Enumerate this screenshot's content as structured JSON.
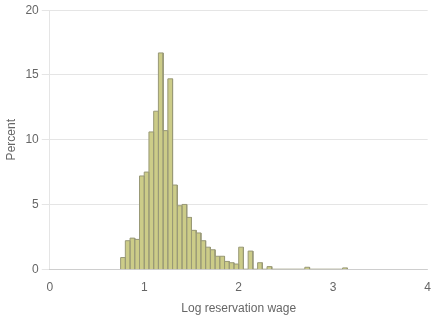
{
  "chart_data": {
    "type": "bar",
    "x": [
      0.75,
      0.8,
      0.85,
      0.9,
      0.95,
      1.0,
      1.05,
      1.1,
      1.15,
      1.2,
      1.25,
      1.3,
      1.35,
      1.4,
      1.45,
      1.5,
      1.55,
      1.6,
      1.65,
      1.7,
      1.75,
      1.8,
      1.85,
      1.9,
      1.95,
      2.0,
      2.1,
      2.2,
      2.3,
      2.7,
      3.1
    ],
    "values": [
      0.9,
      2.2,
      2.4,
      2.3,
      7.2,
      7.5,
      10.6,
      12.2,
      16.7,
      10.7,
      14.7,
      6.5,
      4.9,
      5.0,
      4.0,
      3.0,
      2.8,
      2.2,
      1.7,
      1.5,
      1.0,
      1.0,
      0.6,
      0.5,
      0.4,
      1.7,
      1.4,
      0.5,
      0.2,
      0.15,
      0.1
    ],
    "width": 0.05,
    "color": "#cccc88",
    "xlabel": "Log reservation wage",
    "ylabel": "Percent",
    "xlim": [
      0,
      4
    ],
    "xticks": [
      0,
      1,
      2,
      3,
      4
    ],
    "ylim": [
      0,
      20
    ],
    "yticks": [
      0,
      5,
      10,
      15,
      20
    ],
    "grid": true
  }
}
